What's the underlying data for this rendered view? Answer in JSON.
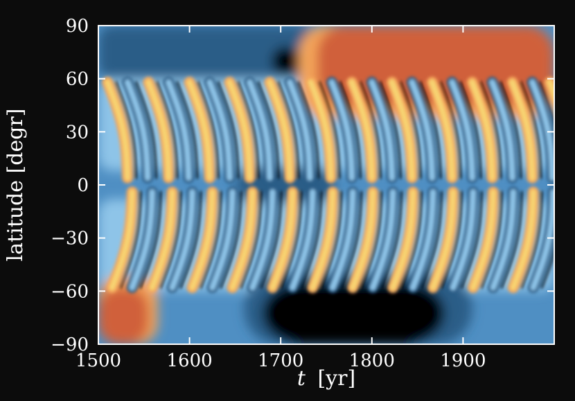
{
  "chart_data": {
    "type": "heatmap",
    "title": "",
    "xlabel": "t [yr]",
    "xlabel_var": "t",
    "xlabel_unit": "[yr]",
    "ylabel": "latitude [degr]",
    "xlim": [
      1500,
      2000
    ],
    "ylim": [
      -90,
      90
    ],
    "x_ticks": [
      1500,
      1600,
      1700,
      1800,
      1900
    ],
    "x_tick_labels": [
      "1500",
      "1600",
      "1700",
      "1800",
      "1900"
    ],
    "y_ticks": [
      90,
      60,
      30,
      0,
      -30,
      -60,
      -90
    ],
    "y_tick_labels": [
      "90",
      "60",
      "30",
      "0",
      "−30",
      "−60",
      "−90"
    ],
    "grid": false,
    "legend": "none",
    "colors": {
      "background": "#0c0c0c",
      "frame": "#ffffff",
      "strong_negative": "#000000",
      "dark_blue": "#2c5d87",
      "blue": "#4f8fc3",
      "light_blue": "#8ec4e8",
      "neutral": "#d9c7a0",
      "yellow": "#f7d472",
      "orange": "#f4a55a",
      "strong_positive": "#d0613a"
    },
    "features": {
      "north_polar_positive_region": {
        "t": [
          1740,
          2000
        ],
        "lat": [
          45,
          90
        ]
      },
      "south_polar_negative_region": {
        "t": [
          1680,
          1880
        ],
        "lat": [
          -90,
          -55
        ]
      },
      "south_polar_positive_region_early": {
        "t": [
          1500,
          1555
        ],
        "lat": [
          -90,
          -58
        ]
      },
      "equatorial_negative_band": {
        "t": [
          1650,
          1760
        ],
        "lat": [
          -10,
          10
        ]
      },
      "north_hemisphere_wings": {
        "t": [
          1510,
          1532,
          1555,
          1577,
          1600,
          1622,
          1644,
          1666,
          1688,
          1710,
          1733,
          1756,
          1778,
          1800,
          1822,
          1844,
          1866,
          1888,
          1910,
          1932,
          1954,
          1976,
          1995
        ]
      },
      "south_hemisphere_wings": {
        "t": [
          1515,
          1537,
          1559,
          1581,
          1603,
          1625,
          1647,
          1669,
          1691,
          1713,
          1735,
          1757,
          1779,
          1801,
          1823,
          1845,
          1867,
          1889,
          1911,
          1933,
          1955,
          1977
        ]
      }
    }
  }
}
